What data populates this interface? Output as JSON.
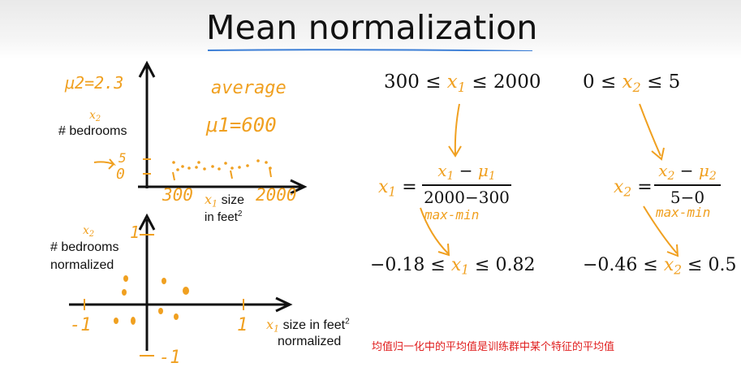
{
  "title": "Mean normalization",
  "plot_top": {
    "y_label_var": "x",
    "y_label_sub": "2",
    "y_label": "# bedrooms",
    "x_label_var": "x",
    "x_label_sub": "1",
    "x_label": "size",
    "x_label_line2": "in feet",
    "x_label_sup": "2",
    "mu2": "μ2=2.3",
    "mu1": "μ1=600",
    "average": "average",
    "tick_5": "5",
    "tick_0": "0",
    "tick_300": "300",
    "tick_2000": "2000"
  },
  "plot_bottom": {
    "y_label_var": "x",
    "y_label_sub": "2",
    "y_label_line1": "# bedrooms",
    "y_label_line2": "normalized",
    "x_label_var": "x",
    "x_label_sub": "1",
    "x_label": "size in feet",
    "x_label_sup": "2",
    "x_label_line2": "normalized",
    "tick_1_y": "1",
    "tick_neg1_x": "-1",
    "tick_1_x": "1",
    "tick_neg1_y": "-1"
  },
  "eq": {
    "range1_left": "300 ≤ ",
    "range1_var": "x",
    "range1_sub": "1",
    "range1_right": " ≤ 2000",
    "range2_left": "0 ≤ ",
    "range2_var": "x",
    "range2_sub": "2",
    "range2_right": " ≤ 5",
    "f1_lhs_var": "x",
    "f1_lhs_sub": "1",
    "f1_num_var": "x",
    "f1_num_sub": "1",
    "f1_num_op": " − ",
    "f1_num_mu": "μ",
    "f1_num_mu_sub": "1",
    "f1_den": "2000−300",
    "f2_lhs_var": "x",
    "f2_lhs_sub": "2",
    "f2_num_var": "x",
    "f2_num_sub": "2",
    "f2_num_op": " − ",
    "f2_num_mu": "μ",
    "f2_num_mu_sub": "2",
    "f2_den": "5−0",
    "maxmin1": "max-min",
    "maxmin2": "max-min",
    "res1_left": "−0.18 ≤ ",
    "res1_var": "x",
    "res1_sub": "1",
    "res1_right": " ≤ 0.82",
    "res2_left": "−0.46 ≤ ",
    "res2_var": "x",
    "res2_sub": "2",
    "res2_right": " ≤ 0.5"
  },
  "note": "均值归一化中的平均值是训练群中某个特征的平均值",
  "colors": {
    "accent": "#f0a020",
    "ink": "#111111",
    "note": "#e02020",
    "underline": "#3d7fd6"
  }
}
